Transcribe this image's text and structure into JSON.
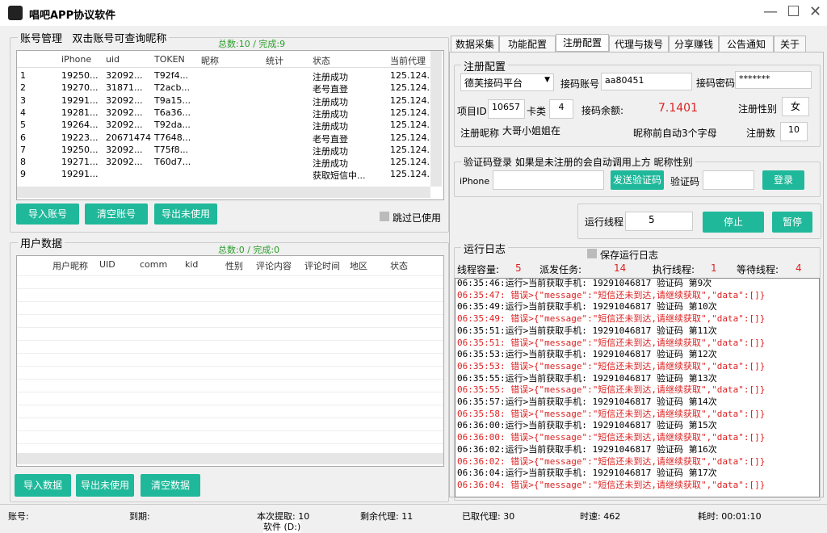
{
  "window": {
    "title": "唱吧APP协议软件"
  },
  "account": {
    "title": "账号管理",
    "hint": "双击账号可查询昵称",
    "stats": "总数:10 / 完成:9",
    "headers": [
      "iPhone",
      "uid",
      "TOKEN",
      "昵称",
      "统计",
      "状态",
      "当前代理"
    ],
    "rows": [
      [
        "1",
        "19250...",
        "32092...",
        "T92f4...",
        "",
        "",
        "注册成功",
        "125.124..."
      ],
      [
        "2",
        "19270...",
        "31871...",
        "T2acb...",
        "",
        "",
        "老号直登",
        "125.124..."
      ],
      [
        "3",
        "19291...",
        "32092...",
        "T9a15...",
        "",
        "",
        "注册成功",
        "125.124..."
      ],
      [
        "4",
        "19281...",
        "32092...",
        "T6a36...",
        "",
        "",
        "注册成功",
        "125.124..."
      ],
      [
        "5",
        "19264...",
        "32092...",
        "T92da...",
        "",
        "",
        "注册成功",
        "125.124..."
      ],
      [
        "6",
        "19223...",
        "20671474",
        "T7648...",
        "",
        "",
        "老号直登",
        "125.124..."
      ],
      [
        "7",
        "19250...",
        "32092...",
        "T75f8...",
        "",
        "",
        "注册成功",
        "125.124..."
      ],
      [
        "8",
        "19271...",
        "32092...",
        "T60d7...",
        "",
        "",
        "注册成功",
        "125.124..."
      ],
      [
        "9",
        "19291...",
        "",
        "",
        "",
        "",
        "获取短信中...",
        "125.124..."
      ]
    ],
    "buttons": [
      "导入账号",
      "清空账号",
      "导出未使用"
    ],
    "skip_used": "跳过已使用"
  },
  "users": {
    "title": "用户数据",
    "stats": "总数:0 / 完成:0",
    "headers": [
      "用户昵称",
      "UID",
      "comm",
      "kid",
      "性别",
      "评论内容",
      "评论时间",
      "地区",
      "状态"
    ],
    "buttons": [
      "导入数据",
      "导出未使用",
      "清空数据"
    ]
  },
  "tabs": [
    "数据采集",
    "功能配置",
    "注册配置",
    "代理与拨号",
    "分享赚钱",
    "公告通知",
    "关于"
  ],
  "register": {
    "title": "注册配置",
    "platform": "德芙接码平台",
    "account_label": "接码账号",
    "account": "aa80451",
    "password_label": "接码密码",
    "password": "*******",
    "project_label": "项目ID",
    "project": "10657",
    "card_label": "卡类",
    "card": "4",
    "balance_label": "接码余额:",
    "balance": "7.1401",
    "gender_label": "注册性别",
    "gender": "女",
    "nick_label": "注册昵称",
    "nick": "大哥小姐姐在",
    "nick_hint": "昵称前自动3个字母",
    "count_label": "注册数",
    "count": "10"
  },
  "login": {
    "title": "验证码登录 如果是未注册的会自动调用上方 昵称性别",
    "phone_label": "iPhone",
    "send": "发送验证码",
    "code_label": "验证码",
    "login": "登录"
  },
  "threads": {
    "label": "运行线程",
    "value": "5",
    "stop": "停止",
    "pause": "暂停"
  },
  "log": {
    "title": "运行日志",
    "save": "保存运行日志",
    "capacity_label": "线程容量:",
    "capacity": "5",
    "tasks_label": "派发任务:",
    "tasks": "14",
    "exec_label": "执行线程:",
    "exec": "1",
    "wait_label": "等待线程:",
    "wait": "4",
    "lines": [
      {
        "text": "06:35:46:运行>当前获取手机: 19291046817  验证码 第9次",
        "color": "#000"
      },
      {
        "text": "06:35:47: 错误>{\"message\":\"短信还未到达,请继续获取\",\"data\":[]}",
        "color": "#d22"
      },
      {
        "text": "06:35:49:运行>当前获取手机: 19291046817  验证码 第10次",
        "color": "#000"
      },
      {
        "text": "06:35:49: 错误>{\"message\":\"短信还未到达,请继续获取\",\"data\":[]}",
        "color": "#d22"
      },
      {
        "text": "06:35:51:运行>当前获取手机: 19291046817  验证码 第11次",
        "color": "#000"
      },
      {
        "text": "06:35:51: 错误>{\"message\":\"短信还未到达,请继续获取\",\"data\":[]}",
        "color": "#d22"
      },
      {
        "text": "06:35:53:运行>当前获取手机: 19291046817  验证码 第12次",
        "color": "#000"
      },
      {
        "text": "06:35:53: 错误>{\"message\":\"短信还未到达,请继续获取\",\"data\":[]}",
        "color": "#d22"
      },
      {
        "text": "06:35:55:运行>当前获取手机: 19291046817  验证码 第13次",
        "color": "#000"
      },
      {
        "text": "06:35:55: 错误>{\"message\":\"短信还未到达,请继续获取\",\"data\":[]}",
        "color": "#d22"
      },
      {
        "text": "06:35:57:运行>当前获取手机: 19291046817  验证码 第14次",
        "color": "#000"
      },
      {
        "text": "06:35:58: 错误>{\"message\":\"短信还未到达,请继续获取\",\"data\":[]}",
        "color": "#d22"
      },
      {
        "text": "06:36:00:运行>当前获取手机: 19291046817  验证码 第15次",
        "color": "#000"
      },
      {
        "text": "06:36:00: 错误>{\"message\":\"短信还未到达,请继续获取\",\"data\":[]}",
        "color": "#d22"
      },
      {
        "text": "06:36:02:运行>当前获取手机: 19291046817  验证码 第16次",
        "color": "#000"
      },
      {
        "text": "06:36:02: 错误>{\"message\":\"短信还未到达,请继续获取\",\"data\":[]}",
        "color": "#d22"
      },
      {
        "text": "06:36:04:运行>当前获取手机: 19291046817  验证码 第17次",
        "color": "#000"
      },
      {
        "text": "06:36:04: 错误>{\"message\":\"短信还未到达,请继续获取\",\"data\":[]}",
        "color": "#d22"
      }
    ]
  },
  "status": [
    "账号:",
    "到期:",
    "本次提取: 10",
    "剩余代理: 11",
    "已取代理: 30",
    "时速: 462",
    "耗时: 00:01:10"
  ],
  "background_item": "软件 (D:)"
}
